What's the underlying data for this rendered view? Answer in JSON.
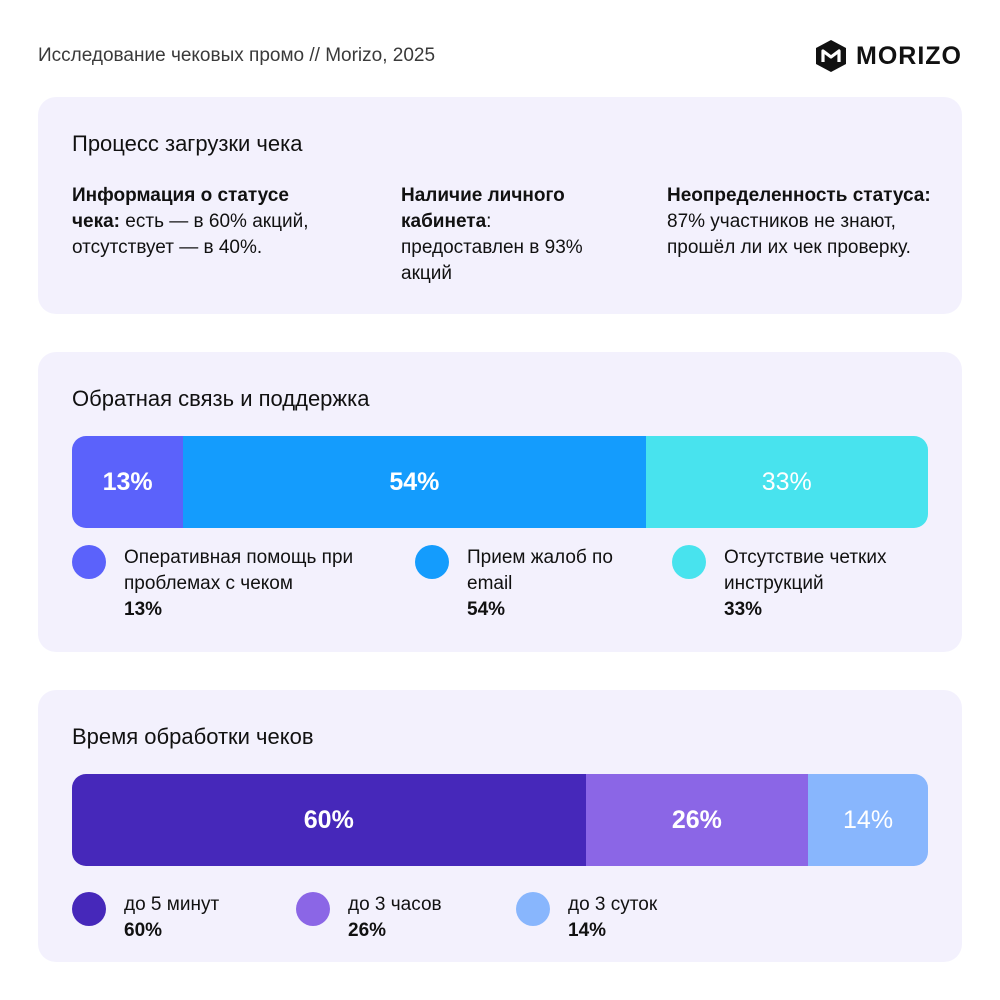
{
  "header": {
    "title": "Исследование чековых промо // Morizo, 2025",
    "logo_text": "MORIZO",
    "logo_icon": "morizo-hex-logo-icon"
  },
  "upload": {
    "title": "Процесс загрузки чека",
    "items": [
      {
        "bold": "Информация о статусе чека:",
        "text": " есть — в 60% акций, отсутствует — в 40%."
      },
      {
        "bold": "Наличие личного кабинета",
        "text": ": предоставлен в 93% акций"
      },
      {
        "bold": "Неопределенность статуса:",
        "text": " 87% участников не знают, прошёл ли их чек проверку."
      }
    ]
  },
  "chart_data": [
    {
      "type": "bar",
      "stacked": true,
      "orientation": "horizontal",
      "title": "Обратная связь и поддержка",
      "series": [
        {
          "name": "Оперативная помощь при проблемах с чеком",
          "value": 13,
          "label": "13%",
          "color": "#5b62fb"
        },
        {
          "name": "Прием жалоб по email",
          "value": 54,
          "label": "54%",
          "color": "#149cfd"
        },
        {
          "name": "Отсутствие четких инструкций",
          "value": 33,
          "label": "33%",
          "color": "#48e3ee"
        }
      ]
    },
    {
      "type": "bar",
      "stacked": true,
      "orientation": "horizontal",
      "title": "Время обработки чеков",
      "series": [
        {
          "name": "до 5 минут",
          "value": 60,
          "label": "60%",
          "color": "#4628ba"
        },
        {
          "name": "до 3 часов",
          "value": 26,
          "label": "26%",
          "color": "#8b66e6"
        },
        {
          "name": "до 3 суток",
          "value": 14,
          "label": "14%",
          "color": "#88b6fd"
        }
      ]
    }
  ]
}
